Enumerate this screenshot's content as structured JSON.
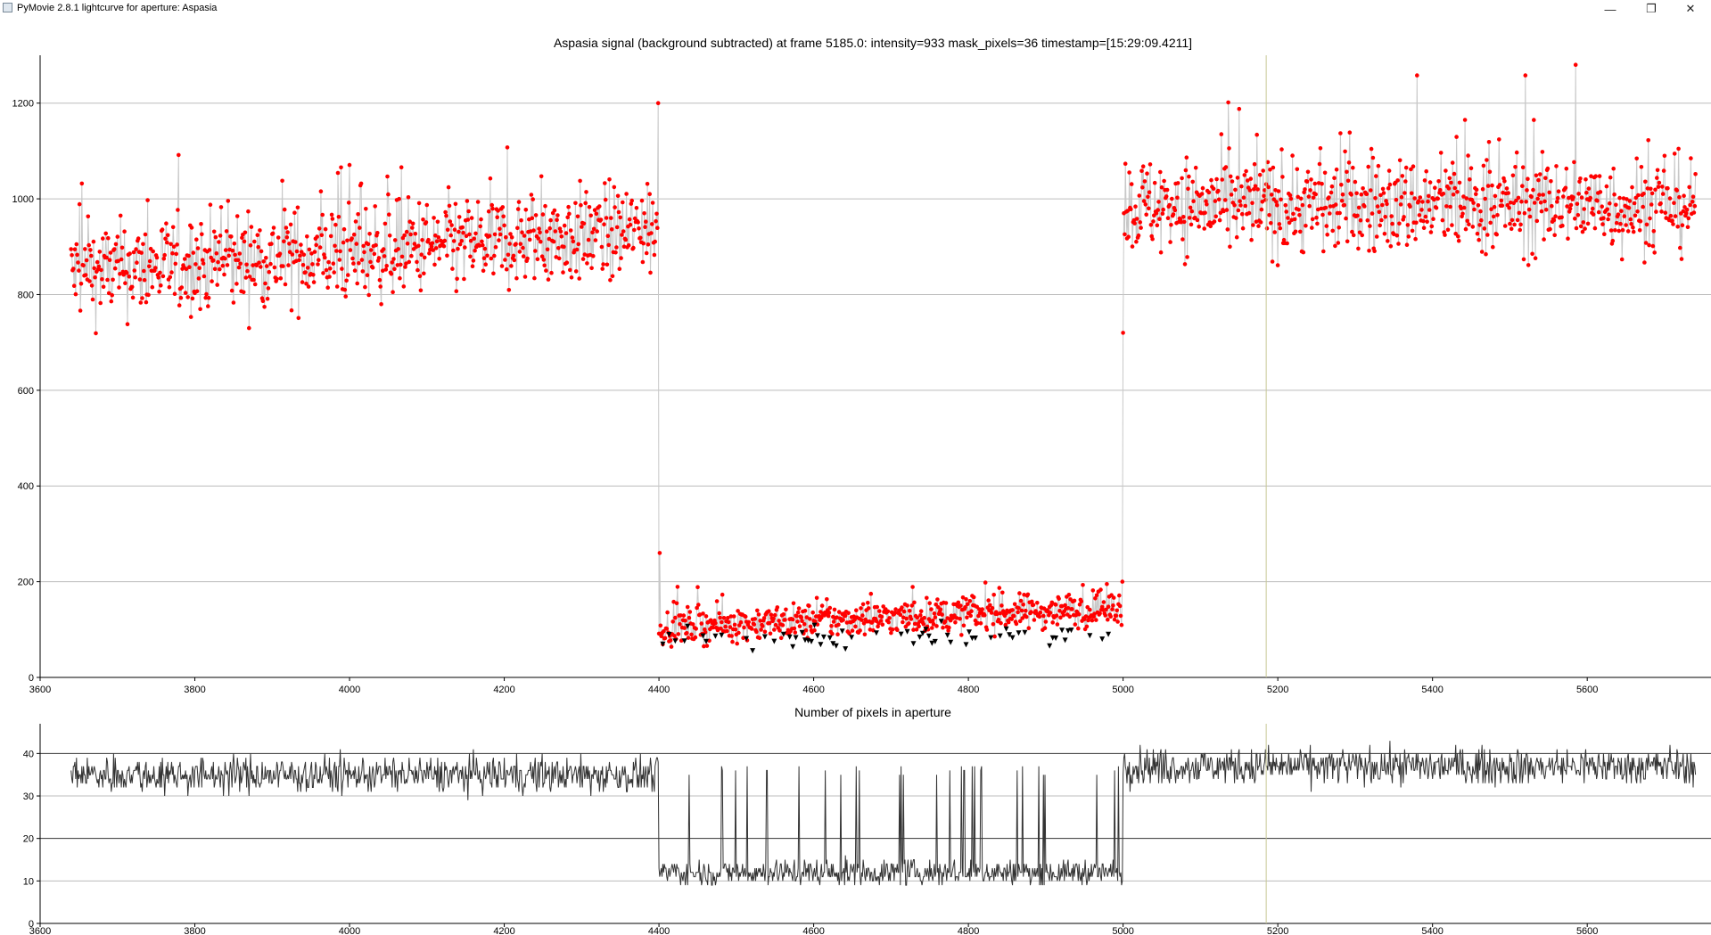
{
  "window": {
    "title": "PyMovie 2.8.1 lightcurve for aperture: Aspasia",
    "minimize_glyph": "—",
    "maximize_glyph": "❐",
    "close_glyph": "✕"
  },
  "colors": {
    "signal_points": "#ff0000",
    "dropout_markers": "#000000",
    "connector_line": "#c8c8c8",
    "pixel_line": "#333333",
    "cursor_line": "#c8c896",
    "grid": "#bcbcbc"
  },
  "chart_data": [
    {
      "type": "scatter",
      "title": "Aspasia signal (background subtracted) at frame 5185.0: intensity=933 mask_pixels=36 timestamp=[15:29:09.4211]",
      "xlabel": "",
      "ylabel": "",
      "xlim": [
        3600,
        5760
      ],
      "ylim": [
        0,
        1300
      ],
      "xticks": [
        3600,
        3800,
        4000,
        4200,
        4400,
        4600,
        4800,
        5000,
        5200,
        5400,
        5600
      ],
      "yticks": [
        0,
        200,
        400,
        600,
        800,
        1000,
        1200
      ],
      "grid": true,
      "cursor_frame": 5185,
      "segments": [
        {
          "x_start": 3640,
          "x_end": 4399,
          "level_start": 845,
          "level_end": 935,
          "spread": 70,
          "color": "red",
          "marker": "circle"
        },
        {
          "x_start": 4400,
          "x_end": 4999,
          "level_start": 105,
          "level_end": 145,
          "spread": 25,
          "color": "red",
          "marker": "circle"
        },
        {
          "x_start": 5000,
          "x_end": 5740,
          "level_start": 985,
          "level_end": 985,
          "spread": 70,
          "color": "red",
          "marker": "circle"
        }
      ],
      "dropout_points": {
        "x_start": 4405,
        "x_end": 4985,
        "level": 85,
        "color": "black",
        "marker": "triangle-down"
      },
      "highlighted_points": [
        {
          "x": 4399,
          "y": 1200
        },
        {
          "x": 4401,
          "y": 260
        },
        {
          "x": 4999,
          "y": 200
        },
        {
          "x": 5000,
          "y": 720
        },
        {
          "x": 5585,
          "y": 1280
        },
        {
          "x": 5380,
          "y": 1258
        },
        {
          "x": 5520,
          "y": 1258
        }
      ]
    },
    {
      "type": "line",
      "title": "Number of pixels in aperture",
      "xlabel": "",
      "ylabel": "",
      "xlim": [
        3600,
        5760
      ],
      "ylim": [
        0,
        47
      ],
      "xticks": [
        3600,
        3800,
        4000,
        4200,
        4400,
        4600,
        4800,
        5000,
        5200,
        5400,
        5600
      ],
      "yticks": [
        0,
        10,
        20,
        30,
        40
      ],
      "grid": true,
      "cursor_frame": 5185,
      "segments": [
        {
          "x_start": 3640,
          "x_end": 4399,
          "level": 35,
          "spread": 3.5
        },
        {
          "x_start": 4400,
          "x_end": 4999,
          "level": 12,
          "spread": 2.5,
          "spikes_to": 37
        },
        {
          "x_start": 5000,
          "x_end": 5740,
          "level": 37,
          "spread": 3.5
        }
      ]
    }
  ]
}
